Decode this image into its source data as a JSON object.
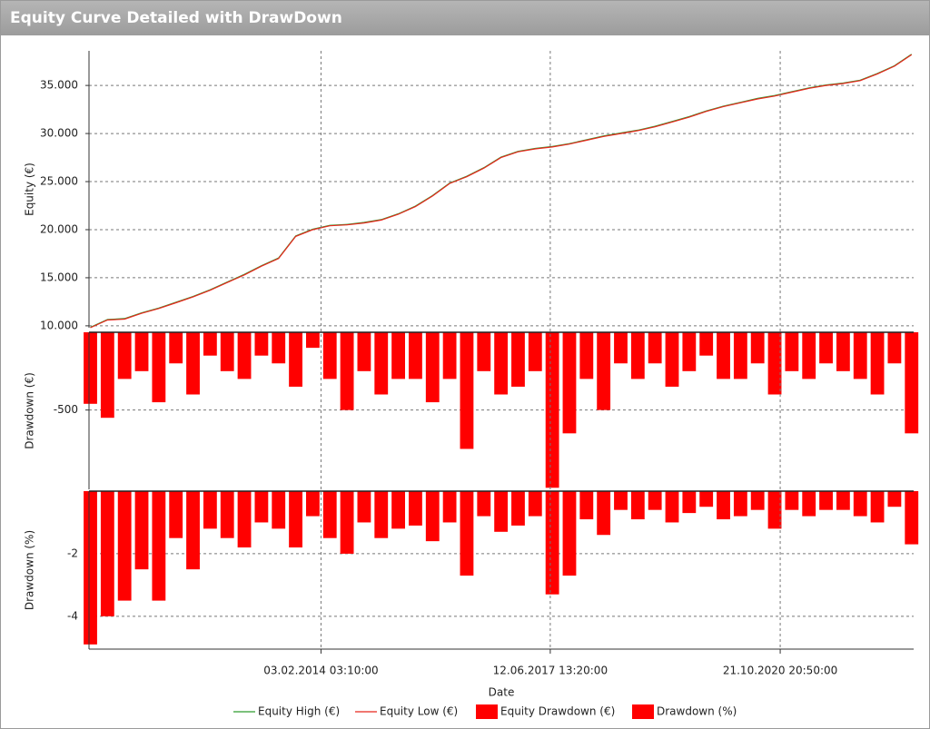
{
  "chart_data": [
    {
      "type": "line",
      "title": "Equity Curve Detailed with DrawDown",
      "y_label": "Equity (€)",
      "x": [
        2010.72,
        2010.97,
        2011.22,
        2011.47,
        2011.72,
        2011.97,
        2012.22,
        2012.47,
        2012.72,
        2012.97,
        2013.22,
        2013.47,
        2013.72,
        2013.97,
        2014.22,
        2014.47,
        2014.72,
        2014.97,
        2015.22,
        2015.47,
        2015.72,
        2015.97,
        2016.22,
        2016.47,
        2016.72,
        2016.97,
        2017.22,
        2017.47,
        2017.72,
        2017.97,
        2018.22,
        2018.47,
        2018.72,
        2018.97,
        2019.22,
        2019.47,
        2019.72,
        2019.97,
        2020.22,
        2020.47,
        2020.72,
        2020.97,
        2021.22,
        2021.47,
        2021.72,
        2021.97,
        2022.22,
        2022.47,
        2022.72
      ],
      "xlim": [
        2010.7,
        2022.75
      ],
      "ylim": [
        9800,
        38600
      ],
      "yticks": [
        {
          "value": 10000,
          "label": "10.000"
        },
        {
          "value": 15000,
          "label": "15.000"
        },
        {
          "value": 20000,
          "label": "20.000"
        },
        {
          "value": 25000,
          "label": "25.000"
        },
        {
          "value": 30000,
          "label": "30.000"
        },
        {
          "value": 35000,
          "label": "35.000"
        }
      ],
      "grid": true,
      "series": [
        {
          "name": "Equity High (€)",
          "color": "#2e9c2e",
          "values": [
            9850,
            10650,
            10750,
            11350,
            11850,
            12450,
            13050,
            13750,
            14550,
            15350,
            16250,
            17050,
            19350,
            20050,
            20450,
            20550,
            20750,
            21050,
            21650,
            22450,
            23550,
            24850,
            25550,
            26450,
            27550,
            28150,
            28450,
            28650,
            28950,
            29350,
            29750,
            30050,
            30350,
            30750,
            31250,
            31750,
            32350,
            32850,
            33250,
            33650,
            33950,
            34350,
            34750,
            35050,
            35250,
            35550,
            36250,
            37050,
            38250
          ]
        },
        {
          "name": "Equity Low (€)",
          "color": "#e8261c",
          "values": [
            9800,
            10600,
            10700,
            11300,
            11800,
            12400,
            13000,
            13700,
            14500,
            15300,
            16200,
            17000,
            19300,
            20000,
            20400,
            20500,
            20700,
            21000,
            21600,
            22400,
            23500,
            24800,
            25500,
            26400,
            27500,
            28100,
            28400,
            28600,
            28900,
            29300,
            29700,
            30000,
            30300,
            30700,
            31200,
            31700,
            32300,
            32800,
            33200,
            33600,
            33900,
            34300,
            34700,
            35000,
            35200,
            35500,
            36200,
            37000,
            38200
          ]
        }
      ]
    },
    {
      "type": "bar",
      "y_label": "Drawdown (€)",
      "x": [
        2010.72,
        2010.97,
        2011.22,
        2011.47,
        2011.72,
        2011.97,
        2012.22,
        2012.47,
        2012.72,
        2012.97,
        2013.22,
        2013.47,
        2013.72,
        2013.97,
        2014.22,
        2014.47,
        2014.72,
        2014.97,
        2015.22,
        2015.47,
        2015.72,
        2015.97,
        2016.22,
        2016.47,
        2016.72,
        2016.97,
        2017.22,
        2017.47,
        2017.72,
        2017.97,
        2018.22,
        2018.47,
        2018.72,
        2018.97,
        2019.22,
        2019.47,
        2019.72,
        2019.97,
        2020.22,
        2020.47,
        2020.72,
        2020.97,
        2021.22,
        2021.47,
        2021.72,
        2021.97,
        2022.22,
        2022.47,
        2022.72
      ],
      "xlim": [
        2010.7,
        2022.75
      ],
      "ylim": [
        -1010,
        0
      ],
      "yticks": [
        -500
      ],
      "grid": true,
      "series": [
        {
          "name": "Equity Drawdown (€)",
          "color": "#ff0000",
          "values": [
            -460,
            -550,
            -300,
            -250,
            -450,
            -200,
            -400,
            -150,
            -250,
            -300,
            -150,
            -200,
            -350,
            -100,
            -300,
            -500,
            -250,
            -400,
            -300,
            -300,
            -450,
            -300,
            -750,
            -250,
            -400,
            -350,
            -250,
            -1000,
            -650,
            -300,
            -500,
            -200,
            -300,
            -200,
            -350,
            -250,
            -150,
            -300,
            -300,
            -200,
            -400,
            -250,
            -300,
            -200,
            -250,
            -300,
            -400,
            -200,
            -650
          ]
        }
      ]
    },
    {
      "type": "bar",
      "y_label": "Drawdown (%)",
      "x_label": "Date",
      "x": [
        2010.72,
        2010.97,
        2011.22,
        2011.47,
        2011.72,
        2011.97,
        2012.22,
        2012.47,
        2012.72,
        2012.97,
        2013.22,
        2013.47,
        2013.72,
        2013.97,
        2014.22,
        2014.47,
        2014.72,
        2014.97,
        2015.22,
        2015.47,
        2015.72,
        2015.97,
        2016.22,
        2016.47,
        2016.72,
        2016.97,
        2017.22,
        2017.47,
        2017.72,
        2017.97,
        2018.22,
        2018.47,
        2018.72,
        2018.97,
        2019.22,
        2019.47,
        2019.72,
        2019.97,
        2020.22,
        2020.47,
        2020.72,
        2020.97,
        2021.22,
        2021.47,
        2021.72,
        2021.97,
        2022.22,
        2022.47,
        2022.72
      ],
      "xlim": [
        2010.7,
        2022.75
      ],
      "xticks": [
        {
          "value": 2014.09,
          "label": "03.02.2014 03:10:00"
        },
        {
          "value": 2017.44,
          "label": "12.06.2017 13:20:00"
        },
        {
          "value": 2020.8,
          "label": "21.10.2020 20:50:00"
        }
      ],
      "ylim": [
        -5.05,
        0
      ],
      "yticks": [
        -2,
        -4
      ],
      "grid": true,
      "series": [
        {
          "name": "Drawdown (%)",
          "color": "#ff0000",
          "values": [
            -4.9,
            -4.0,
            -3.5,
            -2.5,
            -3.5,
            -1.5,
            -2.5,
            -1.2,
            -1.5,
            -1.8,
            -1.0,
            -1.2,
            -1.8,
            -0.8,
            -1.5,
            -2.0,
            -1.0,
            -1.5,
            -1.2,
            -1.1,
            -1.6,
            -1.0,
            -2.7,
            -0.8,
            -1.3,
            -1.1,
            -0.8,
            -3.3,
            -2.7,
            -0.9,
            -1.4,
            -0.6,
            -0.9,
            -0.6,
            -1.0,
            -0.7,
            -0.5,
            -0.9,
            -0.8,
            -0.6,
            -1.2,
            -0.6,
            -0.8,
            -0.6,
            -0.6,
            -0.8,
            -1.0,
            -0.5,
            -1.7
          ]
        }
      ]
    }
  ]
}
